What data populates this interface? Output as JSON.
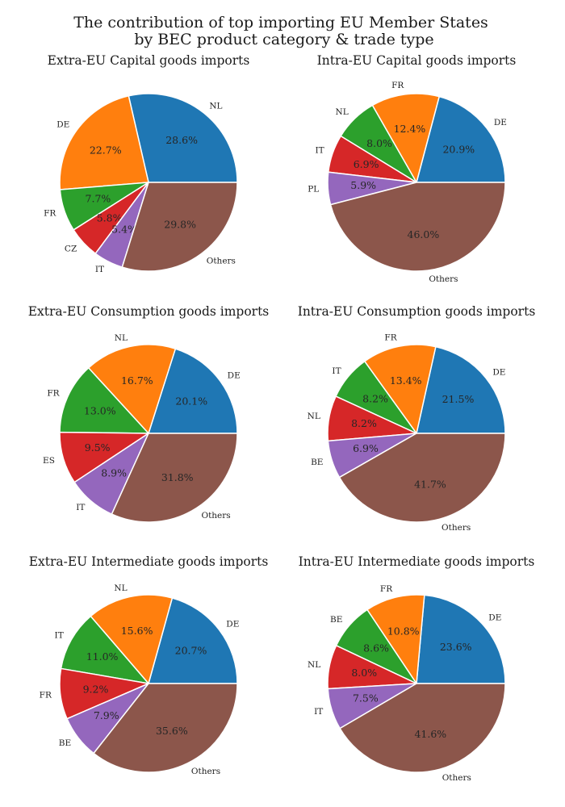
{
  "figure": {
    "title_line1": "The contribution of top importing EU Member States",
    "title_line2": "by BEC product category & trade type"
  },
  "chart_data": [
    {
      "type": "pie",
      "title": "Extra-EU Capital goods imports",
      "slices": [
        {
          "label": "NL",
          "value": 28.6,
          "pct_text": "28.6%",
          "color": "#1f77b4"
        },
        {
          "label": "DE",
          "value": 22.7,
          "pct_text": "22.7%",
          "color": "#ff7f0e"
        },
        {
          "label": "FR",
          "value": 7.7,
          "pct_text": "7.7%",
          "color": "#2ca02c"
        },
        {
          "label": "CZ",
          "value": 5.8,
          "pct_text": "5.8%",
          "color": "#d62728"
        },
        {
          "label": "IT",
          "value": 5.4,
          "pct_text": "5.4%",
          "color": "#9467bd"
        },
        {
          "label": "Others",
          "value": 29.8,
          "pct_text": "29.8%",
          "color": "#8c564b"
        }
      ]
    },
    {
      "type": "pie",
      "title": "Intra-EU Capital goods imports",
      "slices": [
        {
          "label": "DE",
          "value": 20.9,
          "pct_text": "20.9%",
          "color": "#1f77b4"
        },
        {
          "label": "FR",
          "value": 12.4,
          "pct_text": "12.4%",
          "color": "#ff7f0e"
        },
        {
          "label": "NL",
          "value": 8.0,
          "pct_text": "8.0%",
          "color": "#2ca02c"
        },
        {
          "label": "IT",
          "value": 6.9,
          "pct_text": "6.9%",
          "color": "#d62728"
        },
        {
          "label": "PL",
          "value": 5.9,
          "pct_text": "5.9%",
          "color": "#9467bd"
        },
        {
          "label": "Others",
          "value": 46.0,
          "pct_text": "46.0%",
          "color": "#8c564b"
        }
      ]
    },
    {
      "type": "pie",
      "title": "Extra-EU Consumption goods imports",
      "slices": [
        {
          "label": "DE",
          "value": 20.1,
          "pct_text": "20.1%",
          "color": "#1f77b4"
        },
        {
          "label": "NL",
          "value": 16.7,
          "pct_text": "16.7%",
          "color": "#ff7f0e"
        },
        {
          "label": "FR",
          "value": 13.0,
          "pct_text": "13.0%",
          "color": "#2ca02c"
        },
        {
          "label": "ES",
          "value": 9.5,
          "pct_text": "9.5%",
          "color": "#d62728"
        },
        {
          "label": "IT",
          "value": 8.9,
          "pct_text": "8.9%",
          "color": "#9467bd"
        },
        {
          "label": "Others",
          "value": 31.8,
          "pct_text": "31.8%",
          "color": "#8c564b"
        }
      ]
    },
    {
      "type": "pie",
      "title": "Intra-EU Consumption goods imports",
      "slices": [
        {
          "label": "DE",
          "value": 21.5,
          "pct_text": "21.5%",
          "color": "#1f77b4"
        },
        {
          "label": "FR",
          "value": 13.4,
          "pct_text": "13.4%",
          "color": "#ff7f0e"
        },
        {
          "label": "IT",
          "value": 8.2,
          "pct_text": "8.2%",
          "color": "#2ca02c"
        },
        {
          "label": "NL",
          "value": 8.2,
          "pct_text": "8.2%",
          "color": "#d62728"
        },
        {
          "label": "BE",
          "value": 6.9,
          "pct_text": "6.9%",
          "color": "#9467bd"
        },
        {
          "label": "Others",
          "value": 41.7,
          "pct_text": "41.7%",
          "color": "#8c564b"
        }
      ]
    },
    {
      "type": "pie",
      "title": "Extra-EU Intermediate goods imports",
      "slices": [
        {
          "label": "DE",
          "value": 20.7,
          "pct_text": "20.7%",
          "color": "#1f77b4"
        },
        {
          "label": "NL",
          "value": 15.6,
          "pct_text": "15.6%",
          "color": "#ff7f0e"
        },
        {
          "label": "IT",
          "value": 11.0,
          "pct_text": "11.0%",
          "color": "#2ca02c"
        },
        {
          "label": "FR",
          "value": 9.2,
          "pct_text": "9.2%",
          "color": "#d62728"
        },
        {
          "label": "BE",
          "value": 7.9,
          "pct_text": "7.9%",
          "color": "#9467bd"
        },
        {
          "label": "Others",
          "value": 35.6,
          "pct_text": "35.6%",
          "color": "#8c564b"
        }
      ]
    },
    {
      "type": "pie",
      "title": "Intra-EU Intermediate goods imports",
      "slices": [
        {
          "label": "DE",
          "value": 23.6,
          "pct_text": "23.6%",
          "color": "#1f77b4"
        },
        {
          "label": "FR",
          "value": 10.8,
          "pct_text": "10.8%",
          "color": "#ff7f0e"
        },
        {
          "label": "BE",
          "value": 8.6,
          "pct_text": "8.6%",
          "color": "#2ca02c"
        },
        {
          "label": "NL",
          "value": 8.0,
          "pct_text": "8.0%",
          "color": "#d62728"
        },
        {
          "label": "IT",
          "value": 7.5,
          "pct_text": "7.5%",
          "color": "#9467bd"
        },
        {
          "label": "Others",
          "value": 41.6,
          "pct_text": "41.6%",
          "color": "#8c564b"
        }
      ]
    }
  ]
}
